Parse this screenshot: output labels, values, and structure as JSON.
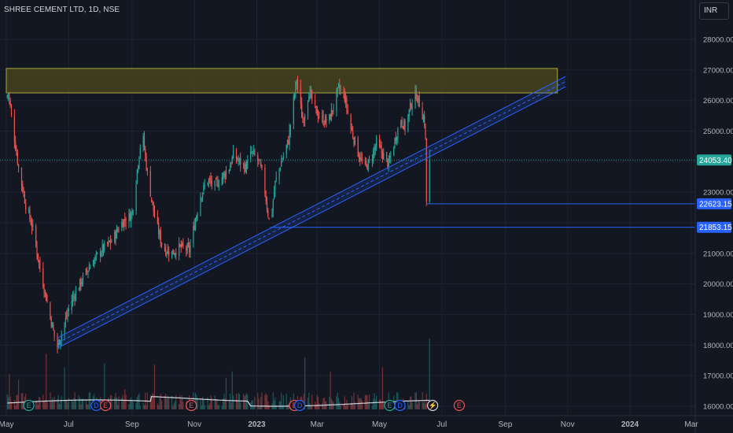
{
  "header": {
    "symbol_title": "SHREE CEMENT LTD, 1D, NSE",
    "currency": "INR"
  },
  "colors": {
    "background": "#131722",
    "grid": "#1f2330",
    "text": "#b2b5be",
    "candle_up": "#26a69a",
    "candle_down": "#ef5350",
    "channel": "#2962ff",
    "zone_fill": "#4d4a1e",
    "zone_border": "#a8a83a",
    "level_line": "#2962ff",
    "last_price_bg": "#26a69a"
  },
  "chart_data": {
    "type": "candlestick",
    "symbol": "SHREE CEMENT LTD",
    "interval": "1D",
    "exchange": "NSE",
    "currency": "INR",
    "y_ticks": [
      16000,
      17000,
      18000,
      19000,
      20000,
      21000,
      22000,
      23000,
      24000,
      25000,
      26000,
      27000,
      28000
    ],
    "y_tick_labels": [
      "16000.00",
      "17000.00",
      "18000.00",
      "19000.00",
      "20000.00",
      "21000.00",
      "22000.00",
      "23000.00",
      "24000.00",
      "25000.00",
      "26000.00",
      "27000.00",
      "28000.00"
    ],
    "x_tick_labels": [
      "May",
      "Jul",
      "Sep",
      "Nov",
      "2023",
      "Mar",
      "May",
      "Jul",
      "Sep",
      "Nov",
      "2024",
      "Mar"
    ],
    "grid": true,
    "close_path": [
      [
        "2022-05-01",
        26100
      ],
      [
        "2022-05-03",
        26250
      ],
      [
        "2022-05-08",
        25000
      ],
      [
        "2022-05-13",
        23800
      ],
      [
        "2022-05-20",
        22600
      ],
      [
        "2022-05-27",
        21800
      ],
      [
        "2022-06-03",
        20500
      ],
      [
        "2022-06-10",
        19400
      ],
      [
        "2022-06-17",
        18300
      ],
      [
        "2022-06-20",
        17950
      ],
      [
        "2022-06-26",
        18600
      ],
      [
        "2022-07-03",
        19400
      ],
      [
        "2022-07-12",
        20000
      ],
      [
        "2022-07-22",
        20600
      ],
      [
        "2022-08-02",
        21100
      ],
      [
        "2022-08-12",
        21400
      ],
      [
        "2022-08-22",
        22000
      ],
      [
        "2022-09-01",
        22300
      ],
      [
        "2022-09-08",
        24300
      ],
      [
        "2022-09-11",
        25000
      ],
      [
        "2022-09-16",
        23600
      ],
      [
        "2022-09-23",
        22200
      ],
      [
        "2022-10-01",
        21200
      ],
      [
        "2022-10-09",
        21000
      ],
      [
        "2022-10-18",
        21200
      ],
      [
        "2022-10-27",
        21100
      ],
      [
        "2022-11-02",
        22100
      ],
      [
        "2022-11-07",
        22900
      ],
      [
        "2022-11-14",
        23400
      ],
      [
        "2022-11-21",
        23200
      ],
      [
        "2022-11-28",
        23500
      ],
      [
        "2022-12-05",
        23800
      ],
      [
        "2022-12-09",
        24200
      ],
      [
        "2022-12-15",
        24000
      ],
      [
        "2022-12-21",
        23800
      ],
      [
        "2022-12-27",
        24300
      ],
      [
        "2023-01-03",
        24000
      ],
      [
        "2023-01-07",
        23500
      ],
      [
        "2023-01-12",
        22300
      ],
      [
        "2023-01-14",
        21900
      ],
      [
        "2023-01-19",
        23300
      ],
      [
        "2023-01-25",
        24000
      ],
      [
        "2023-02-01",
        24700
      ],
      [
        "2023-02-06",
        26000
      ],
      [
        "2023-02-09",
        26700
      ],
      [
        "2023-02-15",
        25300
      ],
      [
        "2023-02-21",
        26300
      ],
      [
        "2023-02-27",
        25700
      ],
      [
        "2023-03-05",
        25400
      ],
      [
        "2023-03-12",
        25300
      ],
      [
        "2023-03-19",
        26000
      ],
      [
        "2023-03-22",
        26400
      ],
      [
        "2023-03-28",
        26100
      ],
      [
        "2023-04-03",
        25100
      ],
      [
        "2023-04-10",
        24300
      ],
      [
        "2023-04-16",
        23800
      ],
      [
        "2023-04-22",
        24000
      ],
      [
        "2023-04-28",
        24600
      ],
      [
        "2023-05-05",
        24200
      ],
      [
        "2023-05-10",
        23900
      ],
      [
        "2023-05-16",
        24700
      ],
      [
        "2023-05-22",
        25400
      ],
      [
        "2023-05-26",
        25100
      ],
      [
        "2023-06-01",
        25900
      ],
      [
        "2023-06-06",
        26200
      ],
      [
        "2023-06-10",
        25800
      ],
      [
        "2023-06-14",
        25300
      ],
      [
        "2023-06-15",
        24700
      ],
      [
        "2023-06-16",
        22700
      ],
      [
        "2023-06-19",
        24053.4
      ]
    ],
    "volume_moving_average_label": "",
    "last_price": "24053.40",
    "price_levels": [
      {
        "value": 22623.15,
        "label": "22623.15",
        "from_date": "2023-06-16"
      },
      {
        "value": 21853.15,
        "label": "21853.15",
        "from_date": "2023-01-14"
      }
    ],
    "drawings": {
      "resistance_zone": {
        "from_date": "2022-05-01",
        "to_date": "2023-10-22",
        "low": 26250,
        "high": 27050
      },
      "ascending_channel": {
        "start_date": "2022-06-20",
        "start_value": 17900,
        "end_date": "2023-10-30",
        "end_value": 26450,
        "width": 170
      }
    },
    "event_markers": [
      {
        "date": "2022-05-23",
        "icon": "E",
        "color": "#26a69a"
      },
      {
        "date": "2022-07-28",
        "icon": "D",
        "color": "#2962ff"
      },
      {
        "date": "2022-08-06",
        "icon": "E",
        "color": "#ef5350"
      },
      {
        "date": "2022-10-29",
        "icon": "E",
        "color": "#ef5350"
      },
      {
        "date": "2023-02-07",
        "icon": "E",
        "color": "#ef5350"
      },
      {
        "date": "2023-02-12",
        "icon": "D",
        "color": "#2962ff"
      },
      {
        "date": "2023-05-11",
        "icon": "E",
        "color": "#26a69a"
      },
      {
        "date": "2023-05-21",
        "icon": "D",
        "color": "#2962ff"
      },
      {
        "date": "2023-06-22",
        "icon": "⚡",
        "color": "#d1d4dc"
      },
      {
        "date": "2023-07-18",
        "icon": "E",
        "color": "#ef5350"
      }
    ]
  }
}
